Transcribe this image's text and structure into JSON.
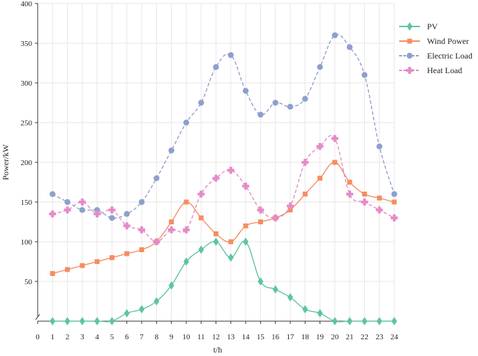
{
  "chart_data": {
    "type": "line",
    "x": [
      1,
      2,
      3,
      4,
      5,
      6,
      7,
      8,
      9,
      10,
      11,
      12,
      13,
      14,
      15,
      16,
      17,
      18,
      19,
      20,
      21,
      22,
      23,
      24
    ],
    "xlabel": "t/h",
    "ylabel": "Power/kW",
    "xlim": [
      0,
      24
    ],
    "ylim": [
      0,
      400
    ],
    "x_ticks": [
      0,
      1,
      2,
      3,
      4,
      5,
      6,
      7,
      8,
      9,
      10,
      11,
      12,
      13,
      14,
      15,
      16,
      17,
      18,
      19,
      20,
      21,
      22,
      23,
      24
    ],
    "y_ticks": [
      50,
      100,
      150,
      200,
      250,
      300,
      350,
      400
    ],
    "grid": true,
    "legend_position": "right",
    "series": [
      {
        "name": "PV",
        "color": "#5fc4a0",
        "marker": "diamond",
        "line_style": "solid",
        "values": [
          0,
          0,
          0,
          0,
          0,
          10,
          15,
          25,
          45,
          75,
          90,
          100,
          80,
          100,
          50,
          40,
          30,
          15,
          10,
          0,
          0,
          0,
          0,
          0
        ]
      },
      {
        "name": "Wind Power",
        "color": "#f58d62",
        "marker": "square",
        "line_style": "solid",
        "values": [
          60,
          65,
          70,
          75,
          80,
          85,
          90,
          100,
          125,
          150,
          130,
          110,
          100,
          120,
          125,
          130,
          140,
          160,
          180,
          200,
          175,
          160,
          155,
          150
        ]
      },
      {
        "name": "Electric Load",
        "color": "#8da0cc",
        "marker": "circle",
        "line_style": "dashed",
        "values": [
          160,
          150,
          140,
          140,
          130,
          135,
          150,
          180,
          215,
          250,
          275,
          320,
          335,
          290,
          260,
          275,
          270,
          280,
          320,
          360,
          345,
          310,
          220,
          160
        ]
      },
      {
        "name": "Heat Load",
        "color": "#e58ac8",
        "marker": "plus",
        "line_style": "dashed",
        "values": [
          135,
          140,
          150,
          135,
          140,
          120,
          115,
          100,
          115,
          115,
          160,
          180,
          190,
          170,
          140,
          130,
          145,
          200,
          220,
          230,
          160,
          150,
          140,
          130
        ]
      }
    ]
  }
}
